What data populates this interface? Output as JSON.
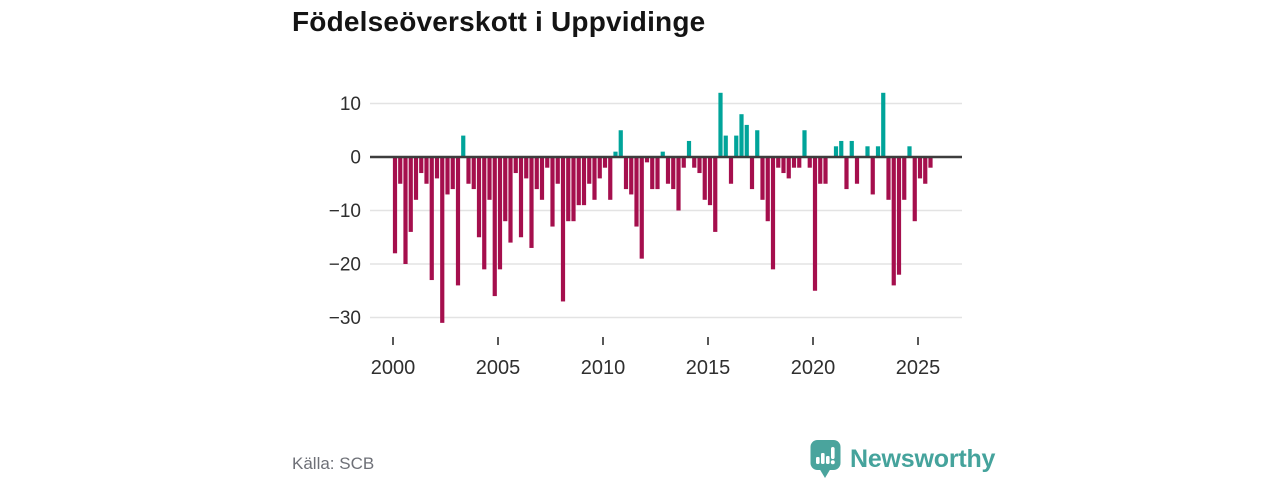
{
  "title": "Födelseöverskott i Uppvidinge",
  "source": "Källa: SCB",
  "brand": {
    "name": "Newsworthy"
  },
  "colors": {
    "positive": "#00a49a",
    "negative": "#a50f4d",
    "grid": "#e3e3e3",
    "zero_line": "#3d3d3d",
    "tick_text": "#2f2f2f",
    "source_text": "#6e7077",
    "brand_teal": "#45a39c",
    "title_text": "#141414",
    "background": "#ffffff"
  },
  "chart_data": {
    "type": "bar",
    "title": "Födelseöverskott i Uppvidinge",
    "xlabel": "",
    "ylabel": "",
    "start_year": 2000,
    "periods_per_year": 4,
    "x_ticks": [
      2000,
      2005,
      2010,
      2015,
      2020,
      2025
    ],
    "y_ticks": [
      10,
      0,
      -10,
      -20,
      -30
    ],
    "ylim": [
      -33,
      13.5
    ],
    "grid": true,
    "legend": "none",
    "series_name": "Födelseöverskott per kvartal",
    "values": [
      -18,
      -5,
      -20,
      -14,
      -8,
      -3,
      -5,
      -23,
      -4,
      -31,
      -7,
      -6,
      -24,
      4,
      -5,
      -6,
      -15,
      -21,
      -8,
      -26,
      -21,
      -12,
      -16,
      -3,
      -15,
      -4,
      -17,
      -6,
      -8,
      -2,
      -13,
      -5,
      -27,
      -12,
      -12,
      -9,
      -9,
      -5,
      -8,
      -4,
      -2,
      -8,
      1,
      5,
      -6,
      -7,
      -13,
      -19,
      -1,
      -6,
      -6,
      1,
      -5,
      -6,
      -10,
      -2,
      3,
      -2,
      -3,
      -8,
      -9,
      -14,
      12,
      4,
      -5,
      4,
      8,
      6,
      -6,
      5,
      -8,
      -12,
      -21,
      -2,
      -3,
      -4,
      -2,
      -2,
      5,
      -2,
      -25,
      -5,
      -5,
      0,
      2,
      3,
      -6,
      3,
      -5,
      0,
      2,
      -7,
      2,
      12,
      -8,
      -24,
      -22,
      -8,
      2,
      -12,
      -4,
      -5,
      -2
    ]
  }
}
